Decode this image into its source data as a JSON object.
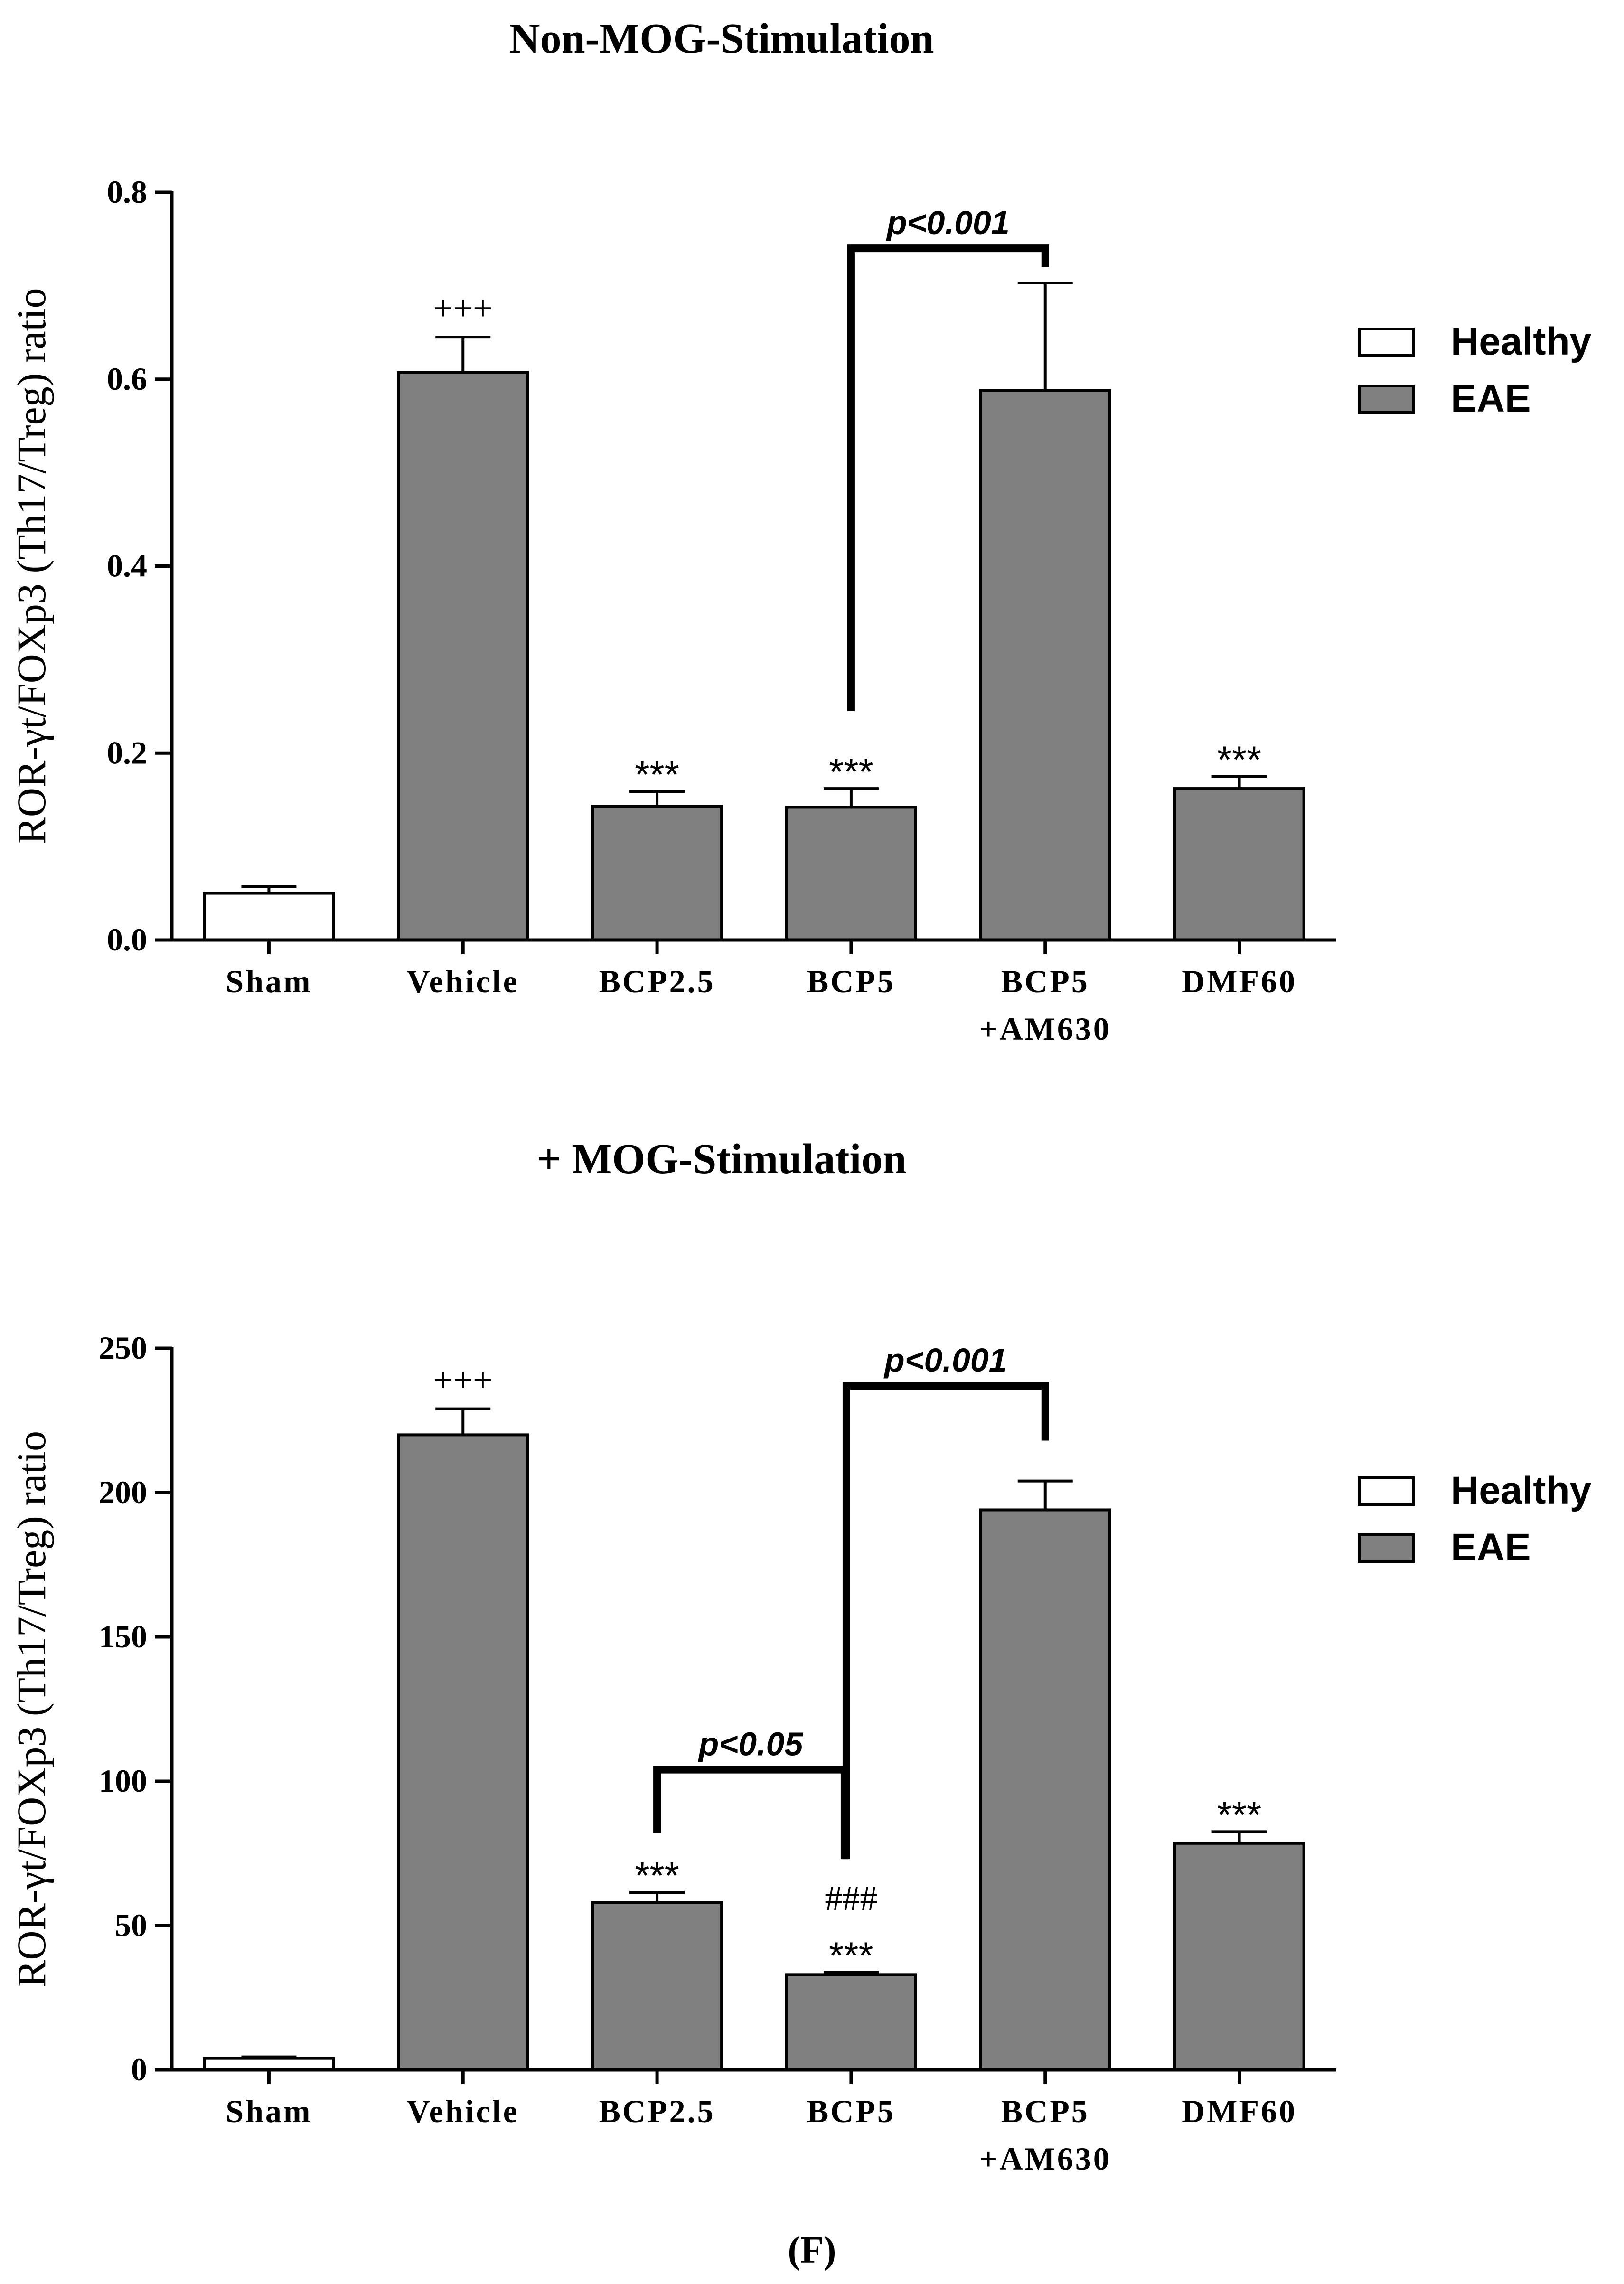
{
  "figure_label": "(F)",
  "legend": {
    "healthy_label": "Healthy",
    "eae_label": "EAE",
    "healthy_color": "#ffffff",
    "eae_color": "#808080"
  },
  "chart_data": [
    {
      "type": "bar",
      "title": "Non-MOG-Stimulation",
      "ylabel": "ROR-γt/FOXp3 (Th17/Treg) ratio",
      "ylim": [
        0,
        0.8
      ],
      "yticks": [
        0.0,
        0.2,
        0.4,
        0.6,
        0.8
      ],
      "ytick_labels": [
        "0.0",
        "0.2",
        "0.4",
        "0.6",
        "0.8"
      ],
      "categories": [
        "Sham",
        "Vehicle",
        "BCP2.5",
        "BCP5",
        "BCP5\n+AM630",
        "DMF60"
      ],
      "values": [
        0.05,
        0.607,
        0.143,
        0.142,
        0.588,
        0.162
      ],
      "errors": [
        0.007,
        0.038,
        0.016,
        0.02,
        0.115,
        0.013
      ],
      "groups": [
        "Healthy",
        "EAE",
        "EAE",
        "EAE",
        "EAE",
        "EAE"
      ],
      "marks": [
        {
          "bar": 1,
          "text": "+++"
        },
        {
          "bar": 2,
          "text": "***"
        },
        {
          "bar": 3,
          "text": "***"
        },
        {
          "bar": 5,
          "text": "***"
        }
      ],
      "brackets": [
        {
          "from": 3,
          "to": 4,
          "label": "p<0.001",
          "level": 0.74,
          "left_end": 0.245,
          "right_end": 0.72
        }
      ]
    },
    {
      "type": "bar",
      "title": "+ MOG-Stimulation",
      "ylabel": "ROR-γt/FOXp3 (Th17/Treg) ratio",
      "ylim": [
        0,
        250
      ],
      "yticks": [
        0,
        50,
        100,
        150,
        200,
        250
      ],
      "ytick_labels": [
        "0",
        "50",
        "100",
        "150",
        "200",
        "250"
      ],
      "categories": [
        "Sham",
        "Vehicle",
        "BCP2.5",
        "BCP5",
        "BCP5\n+AM630",
        "DMF60"
      ],
      "values": [
        4,
        220,
        58,
        33,
        194,
        78.5
      ],
      "errors": [
        0.5,
        9,
        3.5,
        0.8,
        10,
        4
      ],
      "groups": [
        "Healthy",
        "EAE",
        "EAE",
        "EAE",
        "EAE",
        "EAE"
      ],
      "marks": [
        {
          "bar": 1,
          "text": "+++"
        },
        {
          "bar": 2,
          "text": "***"
        },
        {
          "bar": 3,
          "text": "***"
        },
        {
          "bar": 3,
          "text": "###"
        },
        {
          "bar": 5,
          "text": "***"
        }
      ],
      "brackets": [
        {
          "from": 2,
          "to": 3,
          "label": "p<0.05",
          "level": 104,
          "left_end": 82,
          "right_end": 73
        },
        {
          "from": 3,
          "to": 4,
          "label": "p<0.001",
          "level": 237,
          "left_end": 73,
          "right_end": 218
        }
      ]
    }
  ]
}
